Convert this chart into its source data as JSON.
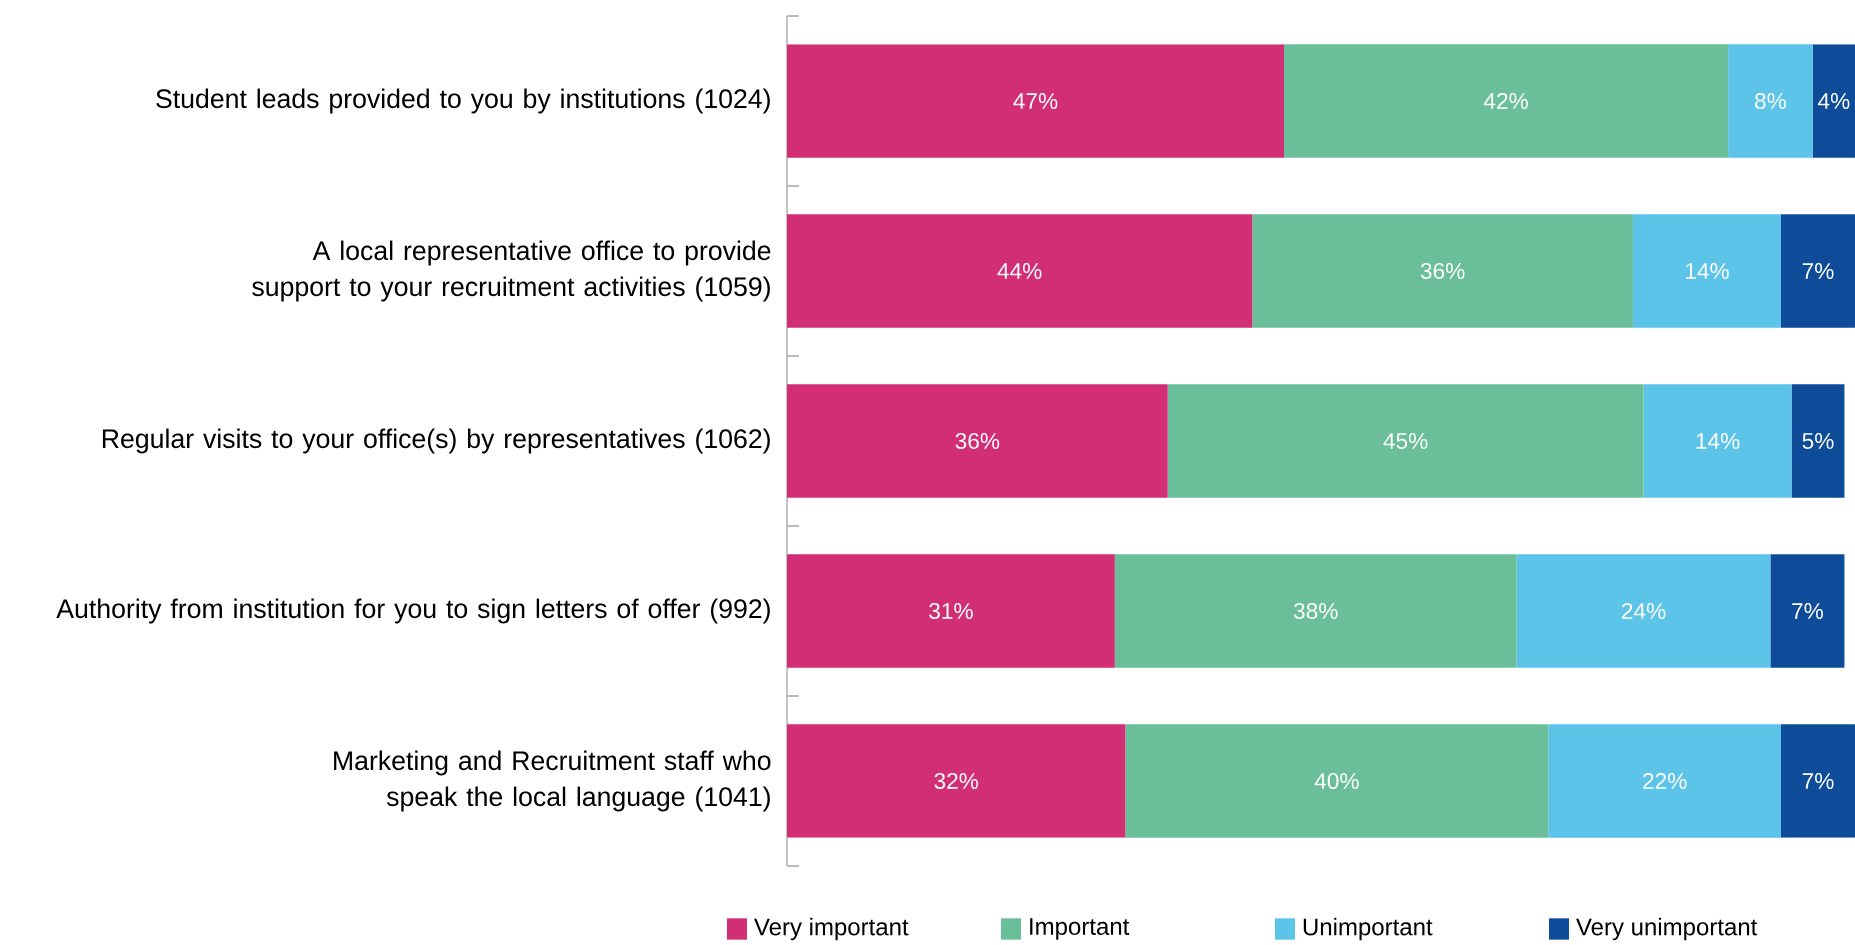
{
  "chart_data": {
    "type": "bar",
    "orientation": "horizontal",
    "stacked": true,
    "legend": "bottom",
    "categories": [
      "Student leads provided to you by institutions (1024)",
      "A local representative office to provide support to your recruitment activities (1059)",
      "Regular visits to your office(s) by representatives (1062)",
      "Authority from institution for you to sign letters of offer (992)",
      "Marketing and Recruitment staff who speak the local language (1041)"
    ],
    "series": [
      {
        "name": "Very important",
        "color": "#d12e75",
        "values": [
          47,
          44,
          36,
          31,
          32
        ],
        "value_labels": [
          "47%",
          "44%",
          "36%",
          "31%",
          "32%"
        ]
      },
      {
        "name": "Important",
        "color": "#6abf9a",
        "values": [
          42,
          36,
          45,
          38,
          40
        ],
        "value_labels": [
          "42%",
          "36%",
          "45%",
          "38%",
          "40%"
        ]
      },
      {
        "name": "Unimportant",
        "color": "#5bc4e8",
        "values": [
          8,
          14,
          14,
          24,
          22
        ],
        "value_labels": [
          "8%",
          "14%",
          "14%",
          "24%",
          "22%"
        ]
      },
      {
        "name": "Very unimportant",
        "color": "#0e4c9a",
        "values": [
          4,
          7,
          5,
          7,
          7
        ],
        "value_labels": [
          "4%",
          "7%",
          "5%",
          "7%",
          "7%"
        ]
      }
    ]
  }
}
